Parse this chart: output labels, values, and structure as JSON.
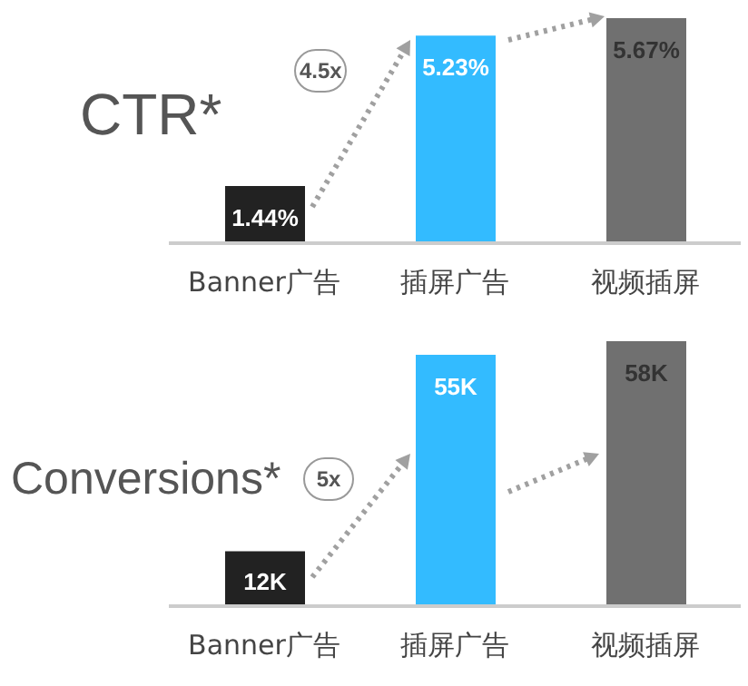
{
  "chart_data": [
    {
      "type": "bar",
      "title": "CTR*",
      "categories": [
        "Banner广告",
        "插屏广告",
        "视频插屏"
      ],
      "values": [
        1.44,
        5.23,
        5.67
      ],
      "colors": [
        "#222222",
        "#33bbff",
        "#707070"
      ],
      "value_labels": [
        "1.44%",
        "5.23%",
        "5.67%"
      ],
      "annotations": [
        "4.5x"
      ]
    },
    {
      "type": "bar",
      "title": "Conversions*",
      "categories": [
        "Banner广告",
        "插屏广告",
        "视频插屏"
      ],
      "values": [
        12,
        55,
        58
      ],
      "colors": [
        "#222222",
        "#33bbff",
        "#707070"
      ],
      "value_labels": [
        "12K",
        "55K",
        "58K"
      ],
      "annotations": [
        "5x"
      ]
    }
  ]
}
